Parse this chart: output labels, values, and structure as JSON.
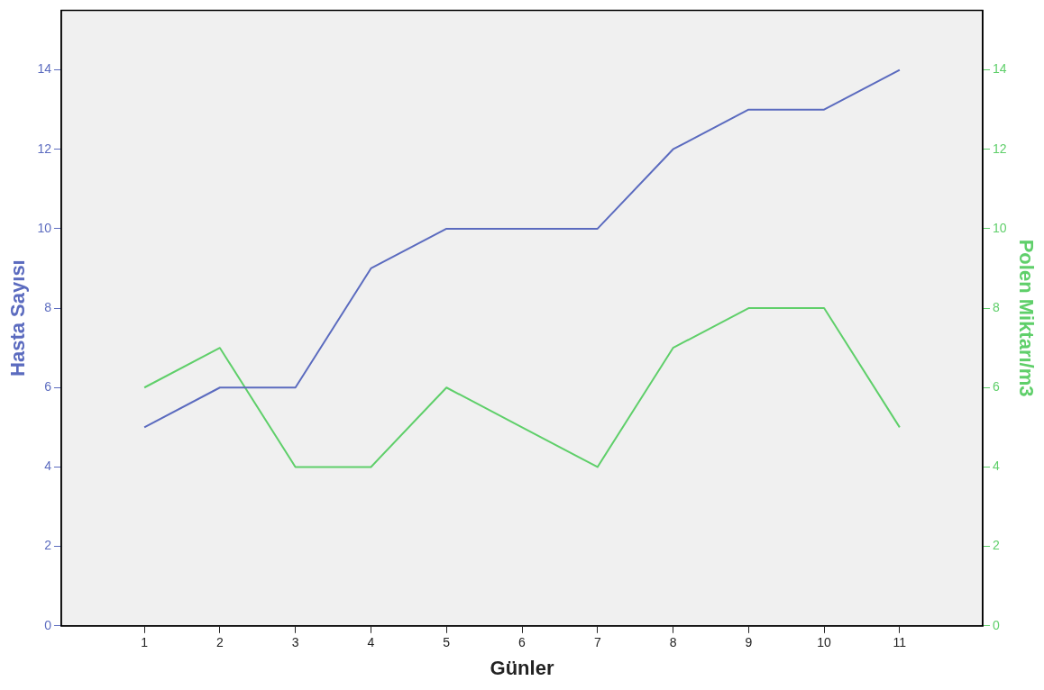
{
  "chart_data": {
    "type": "line",
    "xlabel": "Günler",
    "ylabel": "Hasta Sayısı",
    "y2label": "Polen Miktarı/m3",
    "x": [
      1,
      2,
      3,
      4,
      5,
      6,
      7,
      8,
      9,
      10,
      11
    ],
    "xlim": [
      -0.1,
      12.1
    ],
    "xticks": [
      1,
      2,
      3,
      4,
      5,
      6,
      7,
      8,
      9,
      10,
      11
    ],
    "ylim": [
      0,
      15.5
    ],
    "yticks": [
      0,
      2,
      4,
      6,
      8,
      10,
      12,
      14
    ],
    "y2lim": [
      0,
      15.5
    ],
    "y2ticks": [
      0,
      2,
      4,
      6,
      8,
      10,
      12,
      14
    ],
    "grid": false,
    "legend": false,
    "marker": "none",
    "line_style": "solid",
    "series": [
      {
        "color": "#5b6bbf",
        "values": [
          5,
          6,
          6,
          9,
          10,
          10,
          10,
          12,
          13,
          13,
          14
        ]
      },
      {
        "color": "#5fcf6a",
        "axis": "y2",
        "values": [
          6,
          7,
          4,
          4,
          6,
          5,
          4,
          7,
          8,
          8,
          5
        ]
      }
    ]
  }
}
